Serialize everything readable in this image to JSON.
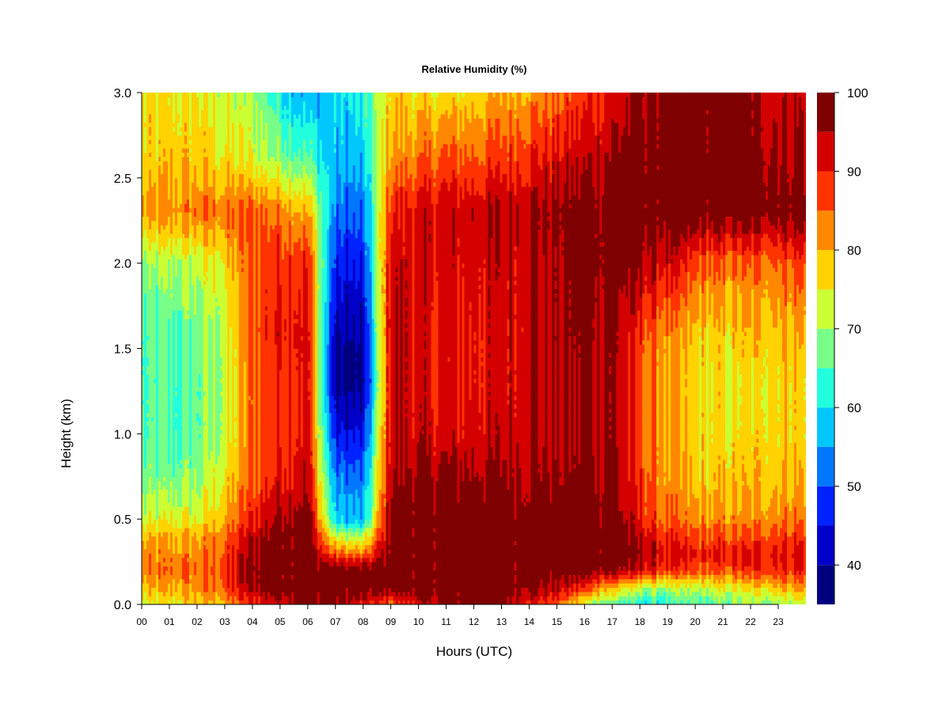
{
  "chart_data": {
    "type": "heatmap",
    "title": "Relative Humidity (%)",
    "xlabel": "Hours (UTC)",
    "ylabel": "Height (km)",
    "x_ticks": [
      "00",
      "01",
      "02",
      "03",
      "04",
      "05",
      "06",
      "07",
      "08",
      "09",
      "10",
      "11",
      "12",
      "13",
      "14",
      "15",
      "16",
      "17",
      "18",
      "19",
      "20",
      "21",
      "22",
      "23"
    ],
    "y_ticks": [
      "0.0",
      "0.5",
      "1.0",
      "1.5",
      "2.0",
      "2.5",
      "3.0"
    ],
    "xlim": [
      0,
      24
    ],
    "ylim": [
      0,
      3
    ],
    "colorbar": {
      "levels": [
        35,
        40,
        45,
        50,
        55,
        60,
        65,
        70,
        75,
        80,
        85,
        90,
        95,
        100
      ],
      "tick_labels": [
        "40",
        "50",
        "60",
        "70",
        "80",
        "90",
        "100"
      ],
      "tick_values": [
        40,
        50,
        60,
        70,
        80,
        90,
        100
      ],
      "colors": [
        "#00007f",
        "#0000c8",
        "#0022ff",
        "#0077ff",
        "#00c8ff",
        "#22ffdd",
        "#77ff88",
        "#ccff33",
        "#ffd200",
        "#ff8800",
        "#ff3300",
        "#d40000",
        "#7f0000"
      ]
    },
    "hours": [
      0,
      1,
      2,
      3,
      4,
      5,
      6,
      7,
      8,
      9,
      10,
      11,
      12,
      13,
      14,
      15,
      16,
      17,
      18,
      19,
      20,
      21,
      22,
      23,
      24
    ],
    "heights_km": [
      0.0,
      0.1,
      0.2,
      0.3,
      0.4,
      0.5,
      0.7,
      1.0,
      1.3,
      1.6,
      2.0,
      2.3,
      2.6,
      3.0
    ],
    "rh_percent": [
      [
        72,
        74,
        78,
        80,
        88,
        95,
        99,
        97,
        90,
        85,
        92,
        95,
        98,
        96,
        92,
        86,
        72,
        66,
        60,
        62,
        64,
        66,
        68,
        70,
        72
      ],
      [
        78,
        80,
        82,
        86,
        96,
        99,
        99,
        99,
        98,
        99,
        99,
        99,
        99,
        99,
        98,
        94,
        88,
        80,
        72,
        70,
        72,
        74,
        76,
        80,
        82
      ],
      [
        82,
        84,
        84,
        88,
        98,
        99,
        99,
        99,
        99,
        99,
        99,
        99,
        99,
        99,
        99,
        99,
        99,
        97,
        92,
        88,
        86,
        86,
        88,
        90,
        90
      ],
      [
        82,
        82,
        82,
        86,
        96,
        99,
        99,
        85,
        82,
        99,
        99,
        99,
        99,
        99,
        99,
        99,
        99,
        99,
        96,
        92,
        90,
        90,
        90,
        92,
        92
      ],
      [
        78,
        80,
        80,
        84,
        94,
        99,
        99,
        72,
        70,
        99,
        99,
        99,
        99,
        99,
        99,
        99,
        99,
        99,
        94,
        88,
        86,
        86,
        86,
        88,
        88
      ],
      [
        72,
        74,
        74,
        80,
        90,
        97,
        99,
        58,
        55,
        99,
        99,
        99,
        99,
        99,
        99,
        99,
        99,
        99,
        90,
        84,
        82,
        82,
        82,
        84,
        84
      ],
      [
        68,
        68,
        70,
        76,
        86,
        92,
        94,
        54,
        52,
        96,
        97,
        97,
        97,
        97,
        97,
        97,
        97,
        97,
        88,
        82,
        78,
        78,
        78,
        80,
        80
      ],
      [
        64,
        64,
        66,
        72,
        84,
        90,
        92,
        45,
        44,
        94,
        93,
        92,
        92,
        93,
        94,
        95,
        96,
        96,
        86,
        80,
        77,
        76,
        77,
        78,
        78
      ],
      [
        64,
        64,
        66,
        72,
        84,
        90,
        92,
        38,
        37,
        94,
        92,
        90,
        91,
        92,
        94,
        95,
        96,
        96,
        86,
        80,
        76,
        76,
        76,
        78,
        78
      ],
      [
        64,
        65,
        67,
        72,
        86,
        92,
        92,
        40,
        39,
        95,
        92,
        90,
        91,
        92,
        94,
        96,
        97,
        96,
        88,
        82,
        78,
        77,
        78,
        80,
        80
      ],
      [
        68,
        70,
        72,
        76,
        86,
        90,
        90,
        46,
        45,
        93,
        92,
        92,
        92,
        93,
        94,
        96,
        98,
        98,
        96,
        92,
        86,
        84,
        84,
        86,
        88
      ],
      [
        80,
        82,
        84,
        84,
        86,
        84,
        80,
        52,
        50,
        90,
        92,
        93,
        94,
        95,
        96,
        97,
        98,
        99,
        99,
        99,
        99,
        99,
        99,
        99,
        99
      ],
      [
        76,
        78,
        78,
        76,
        74,
        70,
        66,
        56,
        56,
        82,
        84,
        86,
        86,
        88,
        90,
        92,
        94,
        96,
        98,
        99,
        99,
        99,
        98,
        96,
        96
      ],
      [
        76,
        76,
        76,
        72,
        70,
        62,
        55,
        58,
        62,
        78,
        76,
        76,
        78,
        80,
        82,
        84,
        88,
        92,
        96,
        98,
        99,
        99,
        97,
        94,
        94
      ]
    ]
  }
}
